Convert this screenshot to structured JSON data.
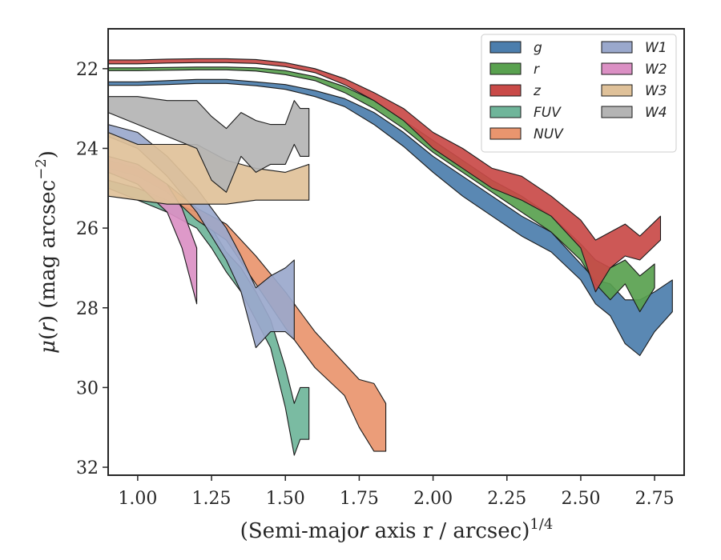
{
  "chart_data": {
    "type": "area",
    "xlabel": "(Semi-major axis r / arcsec)^1/4",
    "ylabel": "μ(r) (mag arcsec^−2)",
    "xlim": [
      0.9,
      2.85
    ],
    "ylim": [
      32.2,
      21.0
    ],
    "y_inverted": true,
    "xticks": [
      "1.00",
      "1.25",
      "1.50",
      "1.75",
      "2.00",
      "2.25",
      "2.50",
      "2.75"
    ],
    "yticks": [
      "22",
      "24",
      "26",
      "28",
      "30",
      "32"
    ],
    "grid": false,
    "legend_position": "top-right",
    "series": [
      {
        "name": "g",
        "color": "#4c7ead",
        "x": [
          0.9,
          1.0,
          1.1,
          1.2,
          1.3,
          1.4,
          1.5,
          1.6,
          1.7,
          1.8,
          1.9,
          2.0,
          2.1,
          2.2,
          2.3,
          2.4,
          2.5,
          2.55,
          2.6,
          2.65,
          2.7,
          2.75,
          2.81
        ],
        "top": [
          22.33,
          22.33,
          22.3,
          22.27,
          22.27,
          22.33,
          22.4,
          22.55,
          22.75,
          23.1,
          23.6,
          24.2,
          24.7,
          25.2,
          25.7,
          26.1,
          26.9,
          27.3,
          27.4,
          27.8,
          27.8,
          27.6,
          27.3
        ],
        "bottom": [
          22.42,
          22.42,
          22.4,
          22.37,
          22.37,
          22.43,
          22.52,
          22.7,
          22.95,
          23.4,
          23.95,
          24.6,
          25.2,
          25.7,
          26.2,
          26.6,
          27.3,
          27.9,
          28.2,
          28.9,
          29.2,
          28.6,
          28.1
        ]
      },
      {
        "name": "r",
        "color": "#59a14f",
        "x": [
          0.9,
          1.0,
          1.1,
          1.2,
          1.3,
          1.4,
          1.5,
          1.6,
          1.7,
          1.8,
          1.9,
          2.0,
          2.1,
          2.2,
          2.3,
          2.4,
          2.5,
          2.55,
          2.6,
          2.65,
          2.7,
          2.75
        ],
        "top": [
          21.98,
          21.98,
          21.97,
          21.96,
          21.96,
          21.98,
          22.05,
          22.2,
          22.45,
          22.8,
          23.3,
          23.8,
          24.3,
          24.8,
          25.2,
          25.7,
          26.4,
          26.8,
          27.0,
          26.8,
          27.2,
          26.9
        ],
        "bottom": [
          22.05,
          22.05,
          22.04,
          22.03,
          22.03,
          22.06,
          22.15,
          22.3,
          22.6,
          23.0,
          23.5,
          24.1,
          24.6,
          25.1,
          25.6,
          26.1,
          26.8,
          27.4,
          27.8,
          27.4,
          28.1,
          27.5
        ]
      },
      {
        "name": "z",
        "color": "#c94a48",
        "x": [
          0.9,
          1.0,
          1.1,
          1.2,
          1.3,
          1.4,
          1.5,
          1.6,
          1.7,
          1.8,
          1.9,
          2.0,
          2.1,
          2.2,
          2.3,
          2.4,
          2.5,
          2.55,
          2.6,
          2.65,
          2.7,
          2.77
        ],
        "top": [
          21.78,
          21.78,
          21.76,
          21.75,
          21.75,
          21.77,
          21.85,
          22.0,
          22.25,
          22.6,
          23.0,
          23.6,
          24.0,
          24.5,
          24.7,
          25.2,
          25.8,
          26.3,
          26.1,
          25.9,
          26.2,
          25.7
        ],
        "bottom": [
          21.88,
          21.88,
          21.86,
          21.85,
          21.85,
          21.87,
          21.95,
          22.1,
          22.4,
          22.8,
          23.3,
          24.0,
          24.5,
          25.0,
          25.3,
          25.7,
          26.5,
          27.6,
          27.0,
          26.7,
          26.8,
          26.3
        ]
      },
      {
        "name": "FUV",
        "color": "#6fb59a",
        "x": [
          0.9,
          1.0,
          1.1,
          1.2,
          1.25,
          1.3,
          1.35,
          1.4,
          1.45,
          1.5,
          1.53,
          1.55,
          1.58
        ],
        "top": [
          24.8,
          25.0,
          25.3,
          25.6,
          26.0,
          26.6,
          27.0,
          27.6,
          28.3,
          29.5,
          30.4,
          30.0,
          30.0
        ],
        "bottom": [
          25.0,
          25.3,
          25.6,
          26.0,
          26.5,
          27.1,
          27.6,
          28.3,
          29.0,
          30.5,
          31.7,
          31.3,
          31.3
        ]
      },
      {
        "name": "NUV",
        "color": "#e9956e",
        "x": [
          0.9,
          1.0,
          1.1,
          1.2,
          1.3,
          1.4,
          1.5,
          1.6,
          1.7,
          1.75,
          1.8,
          1.84
        ],
        "top": [
          24.3,
          24.5,
          24.9,
          25.5,
          25.9,
          26.7,
          27.6,
          28.6,
          29.4,
          29.8,
          29.9,
          30.4
        ],
        "bottom": [
          24.5,
          24.7,
          25.1,
          25.8,
          26.3,
          27.4,
          28.5,
          29.5,
          30.2,
          31.0,
          31.6,
          31.6
        ]
      },
      {
        "name": "W1",
        "color": "#9aa8cc",
        "x": [
          0.9,
          1.0,
          1.1,
          1.2,
          1.3,
          1.35,
          1.4,
          1.45,
          1.5,
          1.53
        ],
        "top": [
          23.4,
          23.6,
          24.2,
          25.0,
          26.0,
          26.7,
          27.5,
          27.2,
          27.0,
          26.8
        ],
        "bottom": [
          23.7,
          24.0,
          24.7,
          25.6,
          26.8,
          27.6,
          29.0,
          28.6,
          28.6,
          28.8
        ]
      },
      {
        "name": "W2",
        "color": "#db90c4",
        "x": [
          0.9,
          1.0,
          1.1,
          1.15,
          1.2
        ],
        "top": [
          24.2,
          24.4,
          24.9,
          25.5,
          26.5
        ],
        "bottom": [
          24.6,
          24.9,
          25.6,
          26.5,
          27.9
        ]
      },
      {
        "name": "W3",
        "color": "#dfc199",
        "x": [
          0.9,
          1.0,
          1.1,
          1.2,
          1.3,
          1.4,
          1.5,
          1.58
        ],
        "top": [
          23.6,
          23.9,
          23.9,
          23.9,
          24.3,
          24.5,
          24.6,
          24.4
        ],
        "bottom": [
          25.2,
          25.3,
          25.4,
          25.4,
          25.4,
          25.3,
          25.3,
          25.3
        ]
      },
      {
        "name": "W4",
        "color": "#b4b4b4",
        "x": [
          0.9,
          1.0,
          1.1,
          1.2,
          1.25,
          1.3,
          1.35,
          1.4,
          1.45,
          1.5,
          1.53,
          1.55,
          1.58
        ],
        "top": [
          22.7,
          22.7,
          22.8,
          22.8,
          23.2,
          23.5,
          23.1,
          23.3,
          23.4,
          23.4,
          22.8,
          23.0,
          23.0
        ],
        "bottom": [
          23.1,
          23.4,
          23.7,
          24.0,
          24.8,
          25.1,
          24.2,
          24.6,
          24.4,
          24.4,
          23.9,
          24.2,
          24.2
        ]
      }
    ]
  }
}
